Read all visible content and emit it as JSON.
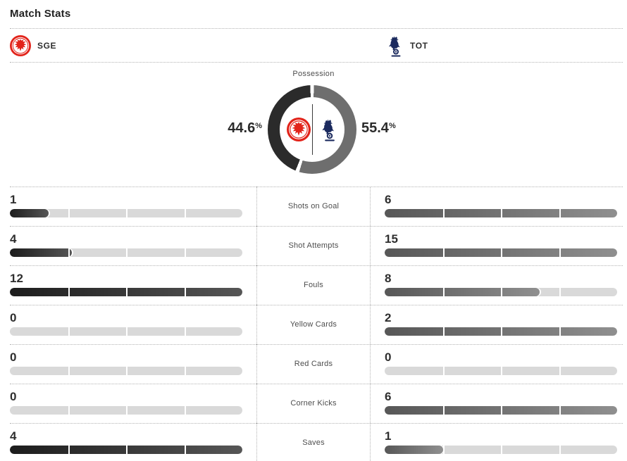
{
  "page": {
    "title": "Match Stats"
  },
  "teams": {
    "home": {
      "abbr": "SGE",
      "crest_icon": "eintracht-frankfurt-crest",
      "color": "#e2231a"
    },
    "away": {
      "abbr": "TOT",
      "crest_icon": "tottenham-hotspur-crest",
      "color": "#1b2a5e"
    }
  },
  "possession": {
    "label": "Possession",
    "home_display": "44.6",
    "away_display": "55.4",
    "pct_symbol": "%"
  },
  "stats": [
    {
      "label": "Shots on Goal",
      "home": 1,
      "away": 6
    },
    {
      "label": "Shot Attempts",
      "home": 4,
      "away": 15
    },
    {
      "label": "Fouls",
      "home": 12,
      "away": 8
    },
    {
      "label": "Yellow Cards",
      "home": 0,
      "away": 2
    },
    {
      "label": "Red Cards",
      "home": 0,
      "away": 0
    },
    {
      "label": "Corner Kicks",
      "home": 0,
      "away": 6
    },
    {
      "label": "Saves",
      "home": 4,
      "away": 1
    }
  ],
  "colors": {
    "donut_home": "#2b2b2b",
    "donut_away": "#6e6e6e",
    "bar_home_gradient": [
      "#1c1c1c",
      "#565656"
    ],
    "bar_away_gradient": [
      "#575757",
      "#8f8f8f"
    ],
    "bar_track": "#d9d9d9",
    "rule": "#b3b3b3"
  },
  "chart_data": [
    {
      "type": "pie",
      "title": "Possession",
      "labels": [
        "SGE",
        "TOT"
      ],
      "values": [
        44.6,
        55.4
      ],
      "unit": "%",
      "layout": "donut with team crests in center, percent labels on sides"
    },
    {
      "type": "bar",
      "title": "Match Stats",
      "categories": [
        "Shots on Goal",
        "Shot Attempts",
        "Fouls",
        "Yellow Cards",
        "Red Cards",
        "Corner Kicks",
        "Saves"
      ],
      "series": [
        {
          "name": "SGE",
          "values": [
            1,
            4,
            12,
            0,
            0,
            0,
            4
          ]
        },
        {
          "name": "TOT",
          "values": [
            6,
            15,
            8,
            2,
            0,
            6,
            1
          ]
        }
      ],
      "layout": "paired horizontal bars, each bar filled as value / max(pair)"
    }
  ]
}
